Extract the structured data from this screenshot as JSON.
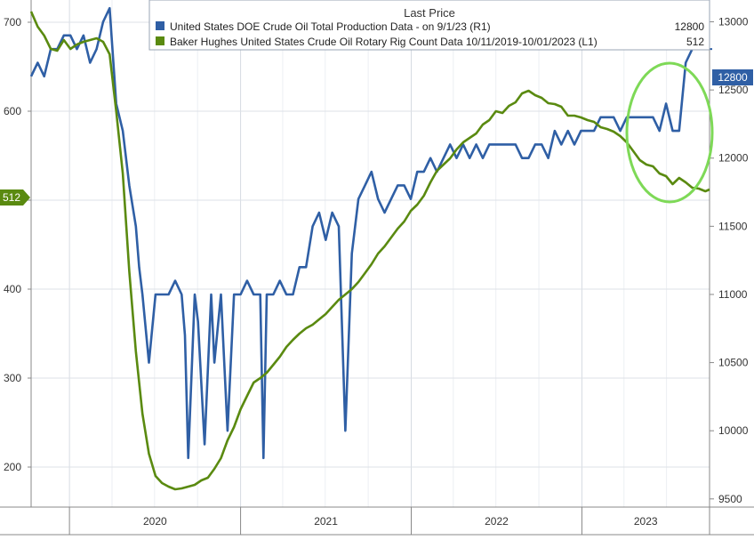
{
  "chart_data": {
    "type": "line",
    "legend": {
      "header": "Last Price",
      "position": "top",
      "entries": [
        {
          "label": "United States DOE Crude Oil Total Production Data -  on 9/1/23  (R1)",
          "value": "12800",
          "color": "#2f5fa5"
        },
        {
          "label": "Baker Hughes United States Crude Oil Rotary Rig Count Data 10/11/2019-10/01/2023  (L1)",
          "value": "512",
          "color": "#5a8a10"
        }
      ]
    },
    "x_axis": {
      "tick_labels": [
        "2020",
        "2021",
        "2022",
        "2023"
      ],
      "range": [
        "2019-10-11",
        "2023-10-01"
      ]
    },
    "left_axis": {
      "range": [
        155,
        725
      ],
      "ticks": [
        200,
        300,
        400,
        500,
        600,
        700
      ]
    },
    "right_axis": {
      "range": [
        9440,
        13160
      ],
      "ticks": [
        9500,
        10000,
        10500,
        11000,
        11500,
        12000,
        12500,
        13000
      ]
    },
    "grid": true,
    "annotation": "green circle around 2023 production rise",
    "last_value_labels": {
      "production": "12800",
      "rig_count": "512"
    },
    "series": [
      {
        "name": "United States DOE Crude Oil Total Production Data",
        "axis": "right",
        "color": "#2f5fa5",
        "x": [
          "2019-10-11",
          "2019-10-25",
          "2019-11-08",
          "2019-11-22",
          "2019-12-06",
          "2019-12-20",
          "2020-01-03",
          "2020-01-17",
          "2020-01-31",
          "2020-02-14",
          "2020-02-28",
          "2020-03-13",
          "2020-03-27",
          "2020-04-10",
          "2020-04-24",
          "2020-05-08",
          "2020-05-22",
          "2020-05-29",
          "2020-06-05",
          "2020-06-19",
          "2020-07-03",
          "2020-07-17",
          "2020-07-31",
          "2020-08-14",
          "2020-08-28",
          "2020-09-04",
          "2020-09-11",
          "2020-09-25",
          "2020-10-02",
          "2020-10-16",
          "2020-10-30",
          "2020-11-06",
          "2020-11-20",
          "2020-12-04",
          "2020-12-18",
          "2021-01-01",
          "2021-01-15",
          "2021-01-29",
          "2021-02-12",
          "2021-02-19",
          "2021-02-26",
          "2021-03-12",
          "2021-03-26",
          "2021-04-09",
          "2021-04-23",
          "2021-05-07",
          "2021-05-21",
          "2021-06-04",
          "2021-06-18",
          "2021-07-02",
          "2021-07-16",
          "2021-07-30",
          "2021-08-13",
          "2021-08-27",
          "2021-09-03",
          "2021-09-10",
          "2021-09-24",
          "2021-10-08",
          "2021-10-22",
          "2021-11-05",
          "2021-11-19",
          "2021-12-03",
          "2021-12-17",
          "2021-12-31",
          "2022-01-14",
          "2022-01-28",
          "2022-02-11",
          "2022-02-25",
          "2022-03-11",
          "2022-03-25",
          "2022-04-08",
          "2022-04-22",
          "2022-05-06",
          "2022-05-20",
          "2022-06-03",
          "2022-06-17",
          "2022-07-01",
          "2022-07-15",
          "2022-07-29",
          "2022-08-12",
          "2022-08-26",
          "2022-09-09",
          "2022-09-23",
          "2022-10-07",
          "2022-10-21",
          "2022-11-04",
          "2022-11-18",
          "2022-12-02",
          "2022-12-16",
          "2022-12-30",
          "2023-01-13",
          "2023-01-27",
          "2023-02-10",
          "2023-02-24",
          "2023-03-10",
          "2023-03-24",
          "2023-04-07",
          "2023-04-21",
          "2023-05-05",
          "2023-05-19",
          "2023-06-02",
          "2023-06-16",
          "2023-06-30",
          "2023-07-14",
          "2023-07-28",
          "2023-08-11",
          "2023-08-25",
          "2023-09-01",
          "2023-10-01"
        ],
        "values": [
          12600,
          12700,
          12600,
          12800,
          12800,
          12900,
          12900,
          12800,
          12900,
          12700,
          12800,
          13000,
          13100,
          12400,
          12200,
          11800,
          11500,
          11200,
          11000,
          10500,
          11000,
          11000,
          11000,
          11100,
          11000,
          10700,
          9800,
          11000,
          10800,
          9900,
          11000,
          10500,
          11000,
          10000,
          11000,
          11000,
          11100,
          11000,
          11000,
          9800,
          11000,
          11000,
          11100,
          11000,
          11000,
          11200,
          11200,
          11500,
          11600,
          11400,
          11600,
          11500,
          10000,
          11300,
          11500,
          11700,
          11800,
          11900,
          11700,
          11600,
          11700,
          11800,
          11800,
          11700,
          11900,
          11900,
          12000,
          11900,
          12000,
          12100,
          12000,
          12100,
          12000,
          12100,
          12000,
          12100,
          12100,
          12100,
          12100,
          12100,
          12000,
          12000,
          12100,
          12100,
          12000,
          12200,
          12100,
          12200,
          12100,
          12200,
          12200,
          12200,
          12300,
          12300,
          12300,
          12200,
          12300,
          12300,
          12300,
          12300,
          12300,
          12200,
          12400,
          12200,
          12200,
          12700,
          12800,
          12800,
          12800
        ]
      },
      {
        "name": "Baker Hughes United States Crude Oil Rotary Rig Count",
        "axis": "left",
        "color": "#5a8a10",
        "x": [
          "2019-10-11",
          "2019-10-25",
          "2019-11-08",
          "2019-11-22",
          "2019-12-06",
          "2019-12-20",
          "2020-01-03",
          "2020-01-17",
          "2020-01-31",
          "2020-02-14",
          "2020-02-28",
          "2020-03-13",
          "2020-03-27",
          "2020-04-10",
          "2020-04-24",
          "2020-05-08",
          "2020-05-22",
          "2020-06-05",
          "2020-06-19",
          "2020-07-03",
          "2020-07-17",
          "2020-07-31",
          "2020-08-14",
          "2020-08-28",
          "2020-09-11",
          "2020-09-25",
          "2020-10-09",
          "2020-10-23",
          "2020-11-06",
          "2020-11-20",
          "2020-12-04",
          "2020-12-18",
          "2021-01-01",
          "2021-01-15",
          "2021-01-29",
          "2021-02-12",
          "2021-02-26",
          "2021-03-12",
          "2021-03-26",
          "2021-04-09",
          "2021-04-23",
          "2021-05-07",
          "2021-05-21",
          "2021-06-04",
          "2021-06-18",
          "2021-07-02",
          "2021-07-16",
          "2021-07-30",
          "2021-08-13",
          "2021-08-27",
          "2021-09-10",
          "2021-09-24",
          "2021-10-08",
          "2021-10-22",
          "2021-11-05",
          "2021-11-19",
          "2021-12-03",
          "2021-12-17",
          "2021-12-31",
          "2022-01-14",
          "2022-01-28",
          "2022-02-11",
          "2022-02-25",
          "2022-03-11",
          "2022-03-25",
          "2022-04-08",
          "2022-04-22",
          "2022-05-06",
          "2022-05-20",
          "2022-06-03",
          "2022-06-17",
          "2022-07-01",
          "2022-07-15",
          "2022-07-29",
          "2022-08-12",
          "2022-08-26",
          "2022-09-09",
          "2022-09-23",
          "2022-10-07",
          "2022-10-21",
          "2022-11-04",
          "2022-11-18",
          "2022-12-02",
          "2022-12-16",
          "2022-12-30",
          "2023-01-13",
          "2023-01-27",
          "2023-02-10",
          "2023-02-24",
          "2023-03-10",
          "2023-03-24",
          "2023-04-07",
          "2023-04-21",
          "2023-05-05",
          "2023-05-19",
          "2023-06-02",
          "2023-06-16",
          "2023-06-30",
          "2023-07-14",
          "2023-07-28",
          "2023-08-11",
          "2023-08-25",
          "2023-09-08",
          "2023-09-22",
          "2023-10-01"
        ],
        "values": [
          712,
          695,
          685,
          670,
          668,
          680,
          670,
          675,
          678,
          680,
          682,
          678,
          664,
          600,
          530,
          420,
          330,
          260,
          215,
          190,
          182,
          178,
          175,
          176,
          178,
          180,
          185,
          188,
          198,
          210,
          230,
          245,
          265,
          280,
          295,
          300,
          306,
          315,
          324,
          335,
          343,
          350,
          356,
          360,
          366,
          372,
          380,
          388,
          394,
          400,
          408,
          418,
          428,
          440,
          448,
          458,
          468,
          476,
          488,
          495,
          505,
          520,
          533,
          540,
          547,
          557,
          565,
          570,
          575,
          585,
          590,
          600,
          598,
          606,
          610,
          620,
          623,
          618,
          615,
          609,
          608,
          605,
          595,
          595,
          593,
          590,
          588,
          582,
          580,
          577,
          572,
          565,
          555,
          545,
          540,
          538,
          530,
          527,
          518,
          525,
          520,
          514,
          513,
          510,
          512
        ]
      }
    ]
  }
}
